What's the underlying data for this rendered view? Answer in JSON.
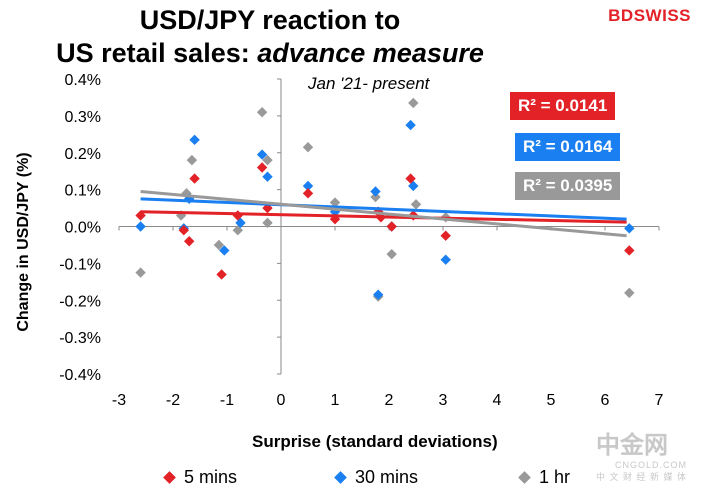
{
  "title_line1": "USD/JPY reaction to",
  "title_line2_plain": "US retail sales: ",
  "title_line2_italic": "advance measure",
  "brand": "BDSWISS",
  "watermark_main": "中金网",
  "watermark_sub": "CNGOLD.COM",
  "watermark_tagline": "中 文 财 经 新 媒 体",
  "chart_data": {
    "type": "scatter",
    "title": "USD/JPY reaction to US retail sales: advance measure",
    "subtitle": "Jan '21- present",
    "xlabel": "Surprise (standard deviations)",
    "ylabel": "Change in USD/JPY  (%)",
    "xlim": [
      -3,
      7
    ],
    "ylim": [
      -0.4,
      0.4
    ],
    "x_ticks": [
      "-3",
      "-2",
      "-1",
      "0",
      "1",
      "2",
      "3",
      "4",
      "5",
      "6",
      "7"
    ],
    "y_ticks": [
      "0.4%",
      "0.3%",
      "0.2%",
      "0.1%",
      "0.0%",
      "-0.1%",
      "-0.2%",
      "-0.3%",
      "-0.4%"
    ],
    "series": [
      {
        "name": "5 mins",
        "color": "#e32228",
        "r2": "R² = 0.0141",
        "trend": [
          [
            -2.6,
            0.04
          ],
          [
            6.4,
            0.012
          ]
        ],
        "points": [
          [
            -2.6,
            0.03
          ],
          [
            -1.8,
            -0.01
          ],
          [
            -1.7,
            -0.04
          ],
          [
            -1.6,
            0.13
          ],
          [
            -1.1,
            -0.13
          ],
          [
            -0.8,
            0.03
          ],
          [
            -0.35,
            0.16
          ],
          [
            -0.25,
            0.05
          ],
          [
            0.5,
            0.09
          ],
          [
            1.0,
            0.02
          ],
          [
            1.8,
            0.04
          ],
          [
            1.85,
            0.025
          ],
          [
            2.05,
            0.0
          ],
          [
            2.4,
            0.13
          ],
          [
            2.45,
            0.03
          ],
          [
            3.05,
            -0.025
          ],
          [
            6.45,
            -0.065
          ]
        ]
      },
      {
        "name": "30 mins",
        "color": "#1a7ff0",
        "r2": "R² = 0.0164",
        "trend": [
          [
            -2.6,
            0.075
          ],
          [
            6.4,
            0.02
          ]
        ],
        "points": [
          [
            -2.6,
            0.0
          ],
          [
            -1.8,
            -0.005
          ],
          [
            -1.7,
            0.075
          ],
          [
            -1.6,
            0.235
          ],
          [
            -1.05,
            -0.065
          ],
          [
            -0.75,
            0.01
          ],
          [
            -0.35,
            0.195
          ],
          [
            -0.25,
            0.135
          ],
          [
            0.5,
            0.11
          ],
          [
            1.0,
            0.04
          ],
          [
            1.75,
            0.095
          ],
          [
            1.8,
            -0.185
          ],
          [
            2.05,
            0.0
          ],
          [
            2.4,
            0.275
          ],
          [
            2.45,
            0.11
          ],
          [
            3.05,
            -0.09
          ],
          [
            6.45,
            -0.005
          ]
        ]
      },
      {
        "name": "1 hr",
        "color": "#999999",
        "r2": "R² = 0.0395",
        "trend": [
          [
            -2.6,
            0.095
          ],
          [
            6.4,
            -0.025
          ]
        ],
        "points": [
          [
            -2.6,
            -0.125
          ],
          [
            -1.85,
            0.03
          ],
          [
            -1.75,
            0.09
          ],
          [
            -1.65,
            0.18
          ],
          [
            -1.15,
            -0.05
          ],
          [
            -0.8,
            -0.01
          ],
          [
            -0.35,
            0.31
          ],
          [
            -0.25,
            0.18
          ],
          [
            -0.25,
            0.01
          ],
          [
            0.5,
            0.215
          ],
          [
            1.0,
            0.065
          ],
          [
            1.75,
            0.08
          ],
          [
            1.8,
            -0.19
          ],
          [
            2.05,
            -0.075
          ],
          [
            2.45,
            0.335
          ],
          [
            2.5,
            0.06
          ],
          [
            3.05,
            0.025
          ],
          [
            6.45,
            -0.18
          ]
        ]
      }
    ],
    "legend_position": "bottom"
  }
}
